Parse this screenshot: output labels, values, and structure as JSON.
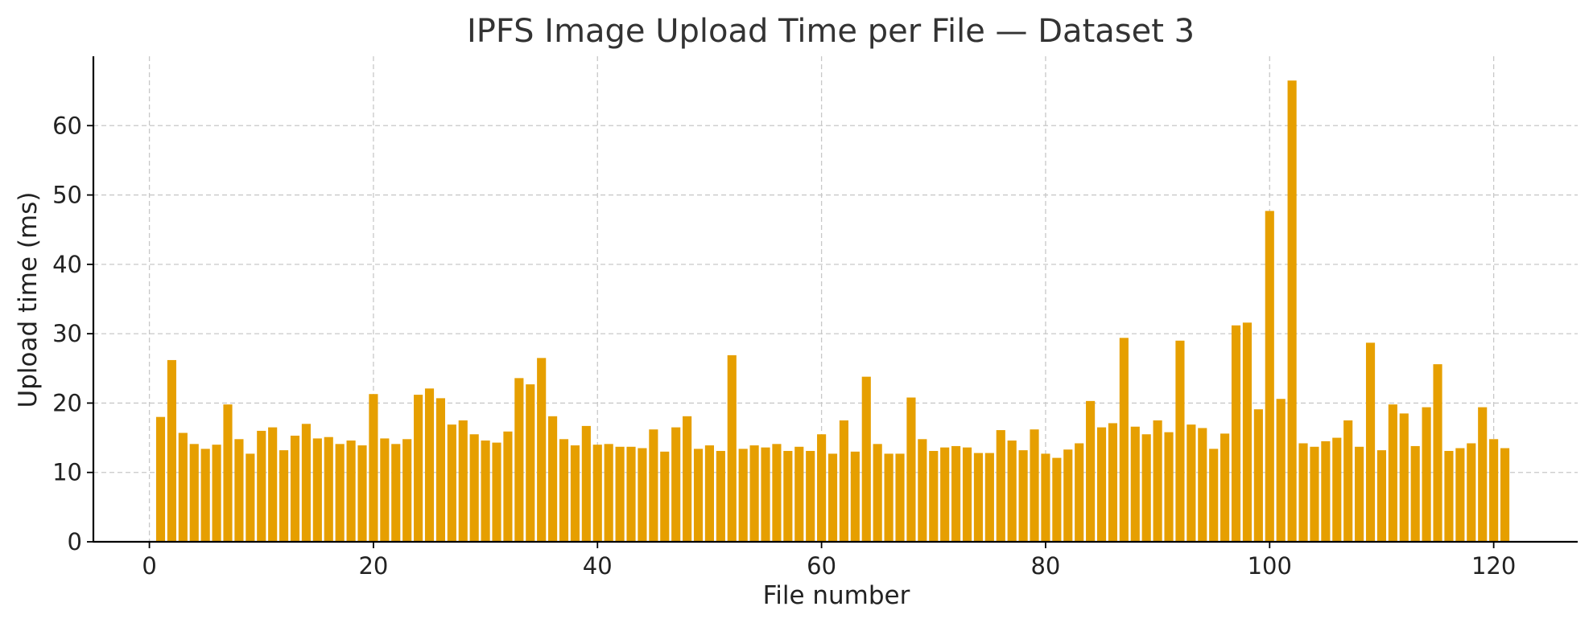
{
  "chart_data": {
    "type": "bar",
    "title": "IPFS Image Upload Time per File — Dataset 3",
    "xlabel": "File number",
    "ylabel": "Upload time (ms)",
    "xlim": [
      -5,
      127.5
    ],
    "ylim": [
      0,
      70
    ],
    "xticks": [
      0,
      20,
      40,
      60,
      80,
      100,
      120
    ],
    "yticks": [
      0,
      10,
      20,
      30,
      40,
      50,
      60
    ],
    "grid": true,
    "legend": "none",
    "bar_color": "#E69F00",
    "x": [
      1,
      2,
      3,
      4,
      5,
      6,
      7,
      8,
      9,
      10,
      11,
      12,
      13,
      14,
      15,
      16,
      17,
      18,
      19,
      20,
      21,
      22,
      23,
      24,
      25,
      26,
      27,
      28,
      29,
      30,
      31,
      32,
      33,
      34,
      35,
      36,
      37,
      38,
      39,
      40,
      41,
      42,
      43,
      44,
      45,
      46,
      47,
      48,
      49,
      50,
      51,
      52,
      53,
      54,
      55,
      56,
      57,
      58,
      59,
      60,
      61,
      62,
      63,
      64,
      65,
      66,
      67,
      68,
      69,
      70,
      71,
      72,
      73,
      74,
      75,
      76,
      77,
      78,
      79,
      80,
      81,
      82,
      83,
      84,
      85,
      86,
      87,
      88,
      89,
      90,
      91,
      92,
      93,
      94,
      95,
      96,
      97,
      98,
      99,
      100,
      101,
      102,
      103,
      104,
      105,
      106,
      107,
      108,
      109,
      110,
      111,
      112,
      113,
      114,
      115,
      116,
      117,
      118,
      119,
      120,
      121
    ],
    "values": [
      18.0,
      26.2,
      15.7,
      14.1,
      13.4,
      14.0,
      19.8,
      14.8,
      12.7,
      16.0,
      16.5,
      13.2,
      15.3,
      17.0,
      14.9,
      15.1,
      14.1,
      14.6,
      13.9,
      21.3,
      14.9,
      14.1,
      14.8,
      21.2,
      22.1,
      20.7,
      16.9,
      17.5,
      15.5,
      14.6,
      14.3,
      15.9,
      23.6,
      22.7,
      26.5,
      18.1,
      14.8,
      13.9,
      16.7,
      14.0,
      14.1,
      13.7,
      13.7,
      13.5,
      16.2,
      13.0,
      16.5,
      18.1,
      13.4,
      13.9,
      13.1,
      26.9,
      13.4,
      13.9,
      13.6,
      14.1,
      13.1,
      13.7,
      13.1,
      15.5,
      12.7,
      17.5,
      13.0,
      23.8,
      14.1,
      12.7,
      12.7,
      20.8,
      14.8,
      13.1,
      13.6,
      13.8,
      13.6,
      12.8,
      12.8,
      16.1,
      14.6,
      13.2,
      16.2,
      12.7,
      12.1,
      13.3,
      14.2,
      20.3,
      16.5,
      17.1,
      29.4,
      16.6,
      15.5,
      17.5,
      15.8,
      29.0,
      16.9,
      16.4,
      13.4,
      15.6,
      31.2,
      31.6,
      19.1,
      47.7,
      20.6,
      66.5,
      14.2,
      13.7,
      14.5,
      15.0,
      17.5,
      13.7,
      28.7,
      13.2,
      19.8,
      18.5,
      13.8,
      19.4,
      25.6,
      13.1,
      13.5,
      14.2,
      19.4,
      14.8,
      13.5
    ]
  }
}
